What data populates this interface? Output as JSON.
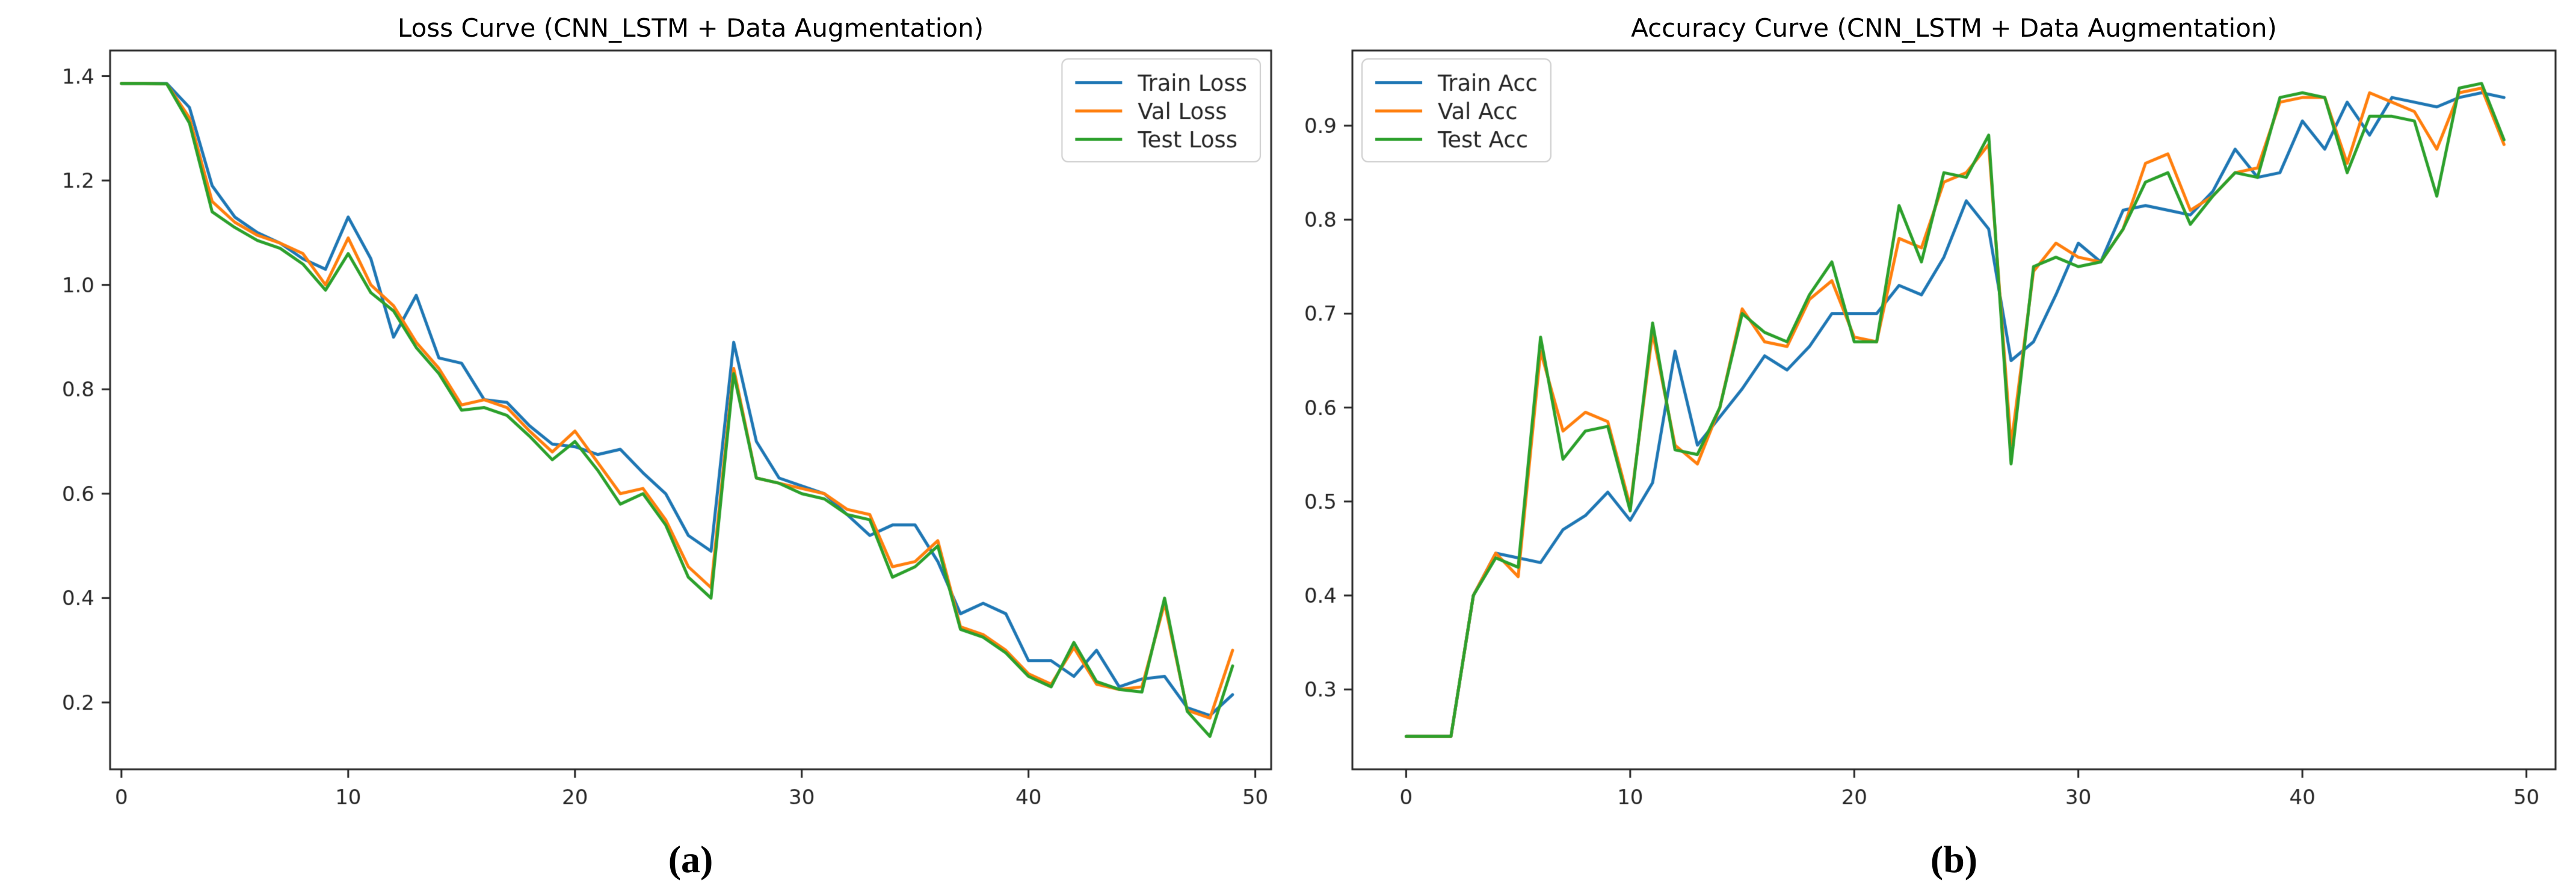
{
  "figure": {
    "background": "#ffffff",
    "captions": {
      "a": "(a)",
      "b": "(b)"
    }
  },
  "palette": {
    "train": "#1f77b4",
    "val": "#ff7f0e",
    "test": "#2ca02c",
    "axis": "#262626",
    "tick_label": "#262626",
    "legend_border": "#cccccc",
    "legend_bg": "rgba(255,255,255,0.9)"
  },
  "epochs": [
    0,
    1,
    2,
    3,
    4,
    5,
    6,
    7,
    8,
    9,
    10,
    11,
    12,
    13,
    14,
    15,
    16,
    17,
    18,
    19,
    20,
    21,
    22,
    23,
    24,
    25,
    26,
    27,
    28,
    29,
    30,
    31,
    32,
    33,
    34,
    35,
    36,
    37,
    38,
    39,
    40,
    41,
    42,
    43,
    44,
    45,
    46,
    47,
    48,
    49
  ],
  "chart_data": [
    {
      "id": "loss",
      "type": "line",
      "title": "Loss Curve (CNN_LSTM + Data Augmentation)",
      "xlabel": "",
      "ylabel": "",
      "xlim": [
        -0.5,
        50.7
      ],
      "ylim": [
        0.072,
        1.449
      ],
      "xticks": [
        0,
        10,
        20,
        30,
        40,
        50
      ],
      "yticks": [
        0.2,
        0.4,
        0.6,
        0.8,
        1.0,
        1.2,
        1.4
      ],
      "xtick_decimals": 0,
      "ytick_decimals": 1,
      "grid": false,
      "legend_loc": "upper-right",
      "series": [
        {
          "name": "Train Loss",
          "color": "#1f77b4",
          "values": [
            1.386,
            1.386,
            1.386,
            1.34,
            1.19,
            1.13,
            1.1,
            1.08,
            1.05,
            1.03,
            1.13,
            1.05,
            0.9,
            0.98,
            0.86,
            0.85,
            0.78,
            0.775,
            0.73,
            0.695,
            0.69,
            0.675,
            0.685,
            0.64,
            0.6,
            0.52,
            0.49,
            0.89,
            0.7,
            0.63,
            0.615,
            0.6,
            0.56,
            0.52,
            0.54,
            0.54,
            0.47,
            0.37,
            0.39,
            0.37,
            0.28,
            0.28,
            0.25,
            0.3,
            0.23,
            0.245,
            0.25,
            0.19,
            0.175,
            0.215
          ]
        },
        {
          "name": "Val Loss",
          "color": "#ff7f0e",
          "values": [
            1.386,
            1.386,
            1.385,
            1.32,
            1.16,
            1.12,
            1.095,
            1.08,
            1.06,
            1.0,
            1.09,
            1.0,
            0.96,
            0.89,
            0.84,
            0.77,
            0.78,
            0.765,
            0.72,
            0.68,
            0.72,
            0.66,
            0.6,
            0.61,
            0.55,
            0.46,
            0.42,
            0.84,
            0.63,
            0.62,
            0.61,
            0.6,
            0.57,
            0.56,
            0.46,
            0.47,
            0.51,
            0.345,
            0.33,
            0.3,
            0.255,
            0.235,
            0.305,
            0.235,
            0.225,
            0.23,
            0.39,
            0.185,
            0.17,
            0.3
          ]
        },
        {
          "name": "Test Loss",
          "color": "#2ca02c",
          "values": [
            1.386,
            1.386,
            1.385,
            1.31,
            1.14,
            1.11,
            1.085,
            1.07,
            1.04,
            0.99,
            1.06,
            0.985,
            0.95,
            0.88,
            0.83,
            0.76,
            0.765,
            0.75,
            0.71,
            0.665,
            0.7,
            0.645,
            0.58,
            0.6,
            0.54,
            0.44,
            0.4,
            0.83,
            0.63,
            0.62,
            0.6,
            0.59,
            0.56,
            0.55,
            0.44,
            0.46,
            0.5,
            0.34,
            0.325,
            0.295,
            0.25,
            0.23,
            0.315,
            0.24,
            0.225,
            0.22,
            0.4,
            0.183,
            0.135,
            0.27
          ]
        }
      ]
    },
    {
      "id": "acc",
      "type": "line",
      "title": "Accuracy Curve (CNN_LSTM + Data Augmentation)",
      "xlabel": "",
      "ylabel": "",
      "xlim": [
        -2.4,
        51.3
      ],
      "ylim": [
        0.215,
        0.98
      ],
      "xticks": [
        0,
        10,
        20,
        30,
        40,
        50
      ],
      "yticks": [
        0.3,
        0.4,
        0.5,
        0.6,
        0.7,
        0.8,
        0.9
      ],
      "xtick_decimals": 0,
      "ytick_decimals": 1,
      "grid": false,
      "legend_loc": "upper-left",
      "series": [
        {
          "name": "Train Acc",
          "color": "#1f77b4",
          "values": [
            0.25,
            0.25,
            0.25,
            0.4,
            0.445,
            0.44,
            0.435,
            0.47,
            0.485,
            0.51,
            0.48,
            0.52,
            0.66,
            0.56,
            0.59,
            0.62,
            0.655,
            0.64,
            0.665,
            0.7,
            0.7,
            0.7,
            0.73,
            0.72,
            0.76,
            0.82,
            0.79,
            0.65,
            0.67,
            0.72,
            0.775,
            0.755,
            0.81,
            0.815,
            0.81,
            0.805,
            0.83,
            0.875,
            0.845,
            0.85,
            0.905,
            0.875,
            0.925,
            0.89,
            0.93,
            0.925,
            0.92,
            0.93,
            0.935,
            0.93
          ]
        },
        {
          "name": "Val Acc",
          "color": "#ff7f0e",
          "values": [
            0.25,
            0.25,
            0.25,
            0.4,
            0.445,
            0.42,
            0.66,
            0.575,
            0.595,
            0.585,
            0.495,
            0.68,
            0.56,
            0.54,
            0.6,
            0.705,
            0.67,
            0.665,
            0.715,
            0.735,
            0.675,
            0.67,
            0.78,
            0.77,
            0.84,
            0.85,
            0.88,
            0.56,
            0.745,
            0.775,
            0.76,
            0.755,
            0.79,
            0.86,
            0.87,
            0.81,
            0.825,
            0.85,
            0.855,
            0.925,
            0.93,
            0.93,
            0.86,
            0.935,
            0.925,
            0.915,
            0.875,
            0.935,
            0.94,
            0.88
          ]
        },
        {
          "name": "Test Acc",
          "color": "#2ca02c",
          "values": [
            0.25,
            0.25,
            0.25,
            0.4,
            0.44,
            0.43,
            0.675,
            0.545,
            0.575,
            0.58,
            0.49,
            0.69,
            0.555,
            0.55,
            0.6,
            0.7,
            0.68,
            0.67,
            0.72,
            0.755,
            0.67,
            0.67,
            0.815,
            0.755,
            0.85,
            0.845,
            0.89,
            0.54,
            0.75,
            0.76,
            0.75,
            0.755,
            0.79,
            0.84,
            0.85,
            0.795,
            0.825,
            0.85,
            0.845,
            0.93,
            0.935,
            0.93,
            0.85,
            0.91,
            0.91,
            0.905,
            0.825,
            0.94,
            0.945,
            0.885
          ]
        }
      ]
    }
  ]
}
